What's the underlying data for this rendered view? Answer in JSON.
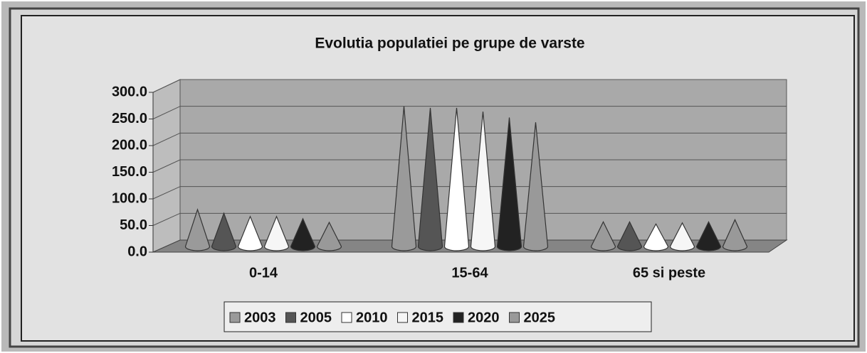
{
  "chart_data": {
    "type": "cone-bar",
    "title": "Evolutia populatiei pe grupe de varste",
    "categories": [
      "0-14",
      "15-64",
      "65 si peste"
    ],
    "series": [
      {
        "name": "2003",
        "color": "#9a9a9a",
        "values": [
          69,
          262,
          46
        ]
      },
      {
        "name": "2005",
        "color": "#555555",
        "values": [
          62,
          259,
          46
        ]
      },
      {
        "name": "2010",
        "color": "#ffffff",
        "values": [
          56,
          259,
          42
        ]
      },
      {
        "name": "2015",
        "color": "#f6f6f6",
        "values": [
          56,
          252,
          44
        ]
      },
      {
        "name": "2020",
        "color": "#222222",
        "values": [
          52,
          241,
          46
        ]
      },
      {
        "name": "2025",
        "color": "#999999",
        "values": [
          45,
          232,
          50
        ]
      }
    ],
    "ylim": [
      0,
      300
    ],
    "yticks": [
      {
        "value": 0,
        "label": "0.0"
      },
      {
        "value": 50,
        "label": "50.0"
      },
      {
        "value": 100,
        "label": "100.0"
      },
      {
        "value": 150,
        "label": "150.0"
      },
      {
        "value": 200,
        "label": "200.0"
      },
      {
        "value": 250,
        "label": "250.0"
      },
      {
        "value": 300,
        "label": "300.0"
      }
    ],
    "grid": true,
    "legend": "bottom"
  }
}
